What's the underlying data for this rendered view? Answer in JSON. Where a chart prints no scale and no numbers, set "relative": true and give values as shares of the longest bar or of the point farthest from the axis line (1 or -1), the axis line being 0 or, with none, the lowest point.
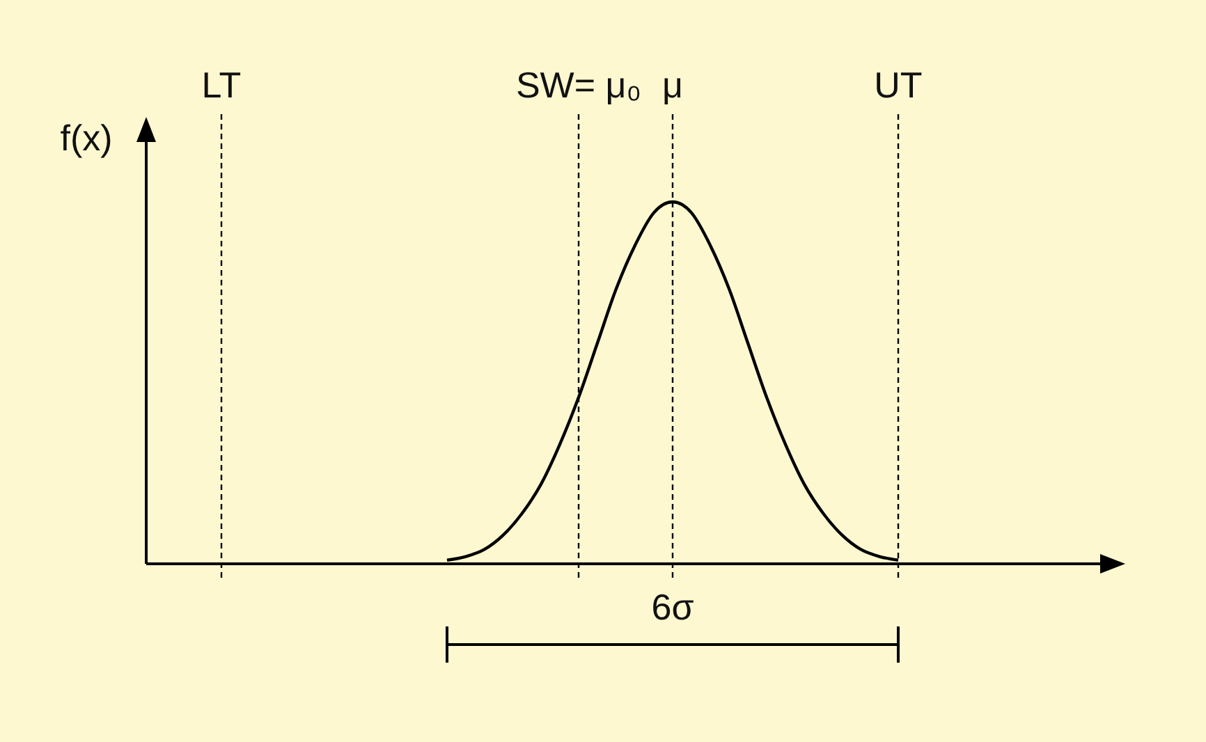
{
  "chart_data": {
    "type": "line",
    "relative": true,
    "ylabel": "f(x)",
    "categories": [
      null,
      null,
      null,
      null,
      null,
      null,
      null,
      null,
      null,
      null,
      null,
      null,
      null,
      null,
      null,
      null,
      null,
      null,
      null,
      null,
      null,
      null,
      null,
      null,
      null,
      null,
      null,
      null,
      null,
      null,
      null,
      null,
      null,
      null,
      null,
      null,
      null,
      null,
      null,
      null,
      null,
      null,
      null,
      null,
      null,
      null,
      null,
      null,
      null,
      null,
      null
    ],
    "series": [
      {
        "color": "#000000",
        "values": [
          null,
          null,
          null,
          null,
          null,
          null,
          null,
          null,
          null,
          null,
          null,
          null,
          null,
          null,
          null,
          null,
          0.01,
          0.02,
          0.04,
          0.08,
          0.14,
          0.22,
          0.33,
          0.46,
          0.61,
          0.76,
          0.88,
          0.97,
          1,
          0.97,
          0.88,
          0.76,
          0.61,
          0.46,
          0.33,
          0.22,
          0.14,
          0.08,
          0.04,
          0.02,
          0.01,
          null,
          null,
          null,
          null,
          null,
          null,
          null,
          null,
          null,
          null
        ]
      }
    ],
    "annotations": [
      "LT",
      "SW= μ₀",
      "μ",
      "UT",
      "6σ"
    ],
    "grid": "x",
    "line_style": "solid",
    "marker": "none"
  }
}
